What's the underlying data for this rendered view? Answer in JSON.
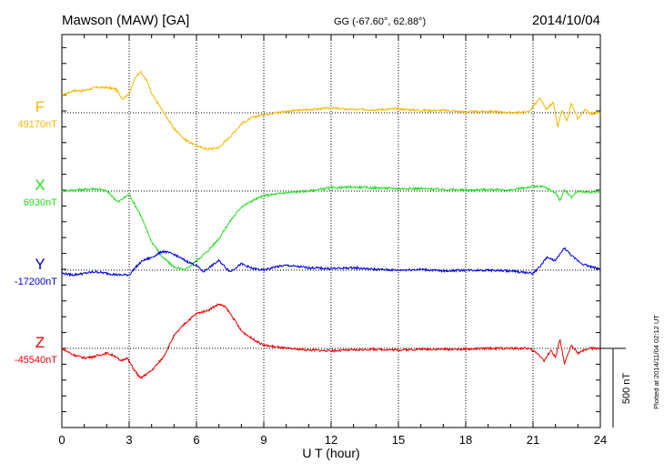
{
  "header": {
    "station": "Mawson (MAW)  [GA]",
    "coords": "GG (-67.60°,  62.88°)",
    "date": "2014/10/04"
  },
  "side_note": "Plotted at 2014/11/04 02:12 UT",
  "scale_bar_label": "500 nT",
  "colors": {
    "F": "#f5b800",
    "X": "#22dd22",
    "Y": "#0000e0",
    "Z": "#ee0000"
  },
  "chart_data": {
    "type": "line",
    "xlabel": "U T (hour)",
    "xlim": [
      0,
      24
    ],
    "x_ticks": [
      0,
      3,
      6,
      9,
      12,
      15,
      18,
      21,
      24
    ],
    "x_tick_labels": [
      "0",
      "3",
      "6",
      "9",
      "12",
      "15",
      "18",
      "21",
      "24"
    ],
    "x_grid": [
      3,
      6,
      9,
      12,
      15,
      18,
      21
    ],
    "scale_bar_nT": 500,
    "series": [
      {
        "name": "F",
        "baseline_label": "49170nT",
        "baseline_nT": 49170,
        "x": [
          0,
          0.5,
          1,
          1.5,
          2,
          2.4,
          2.7,
          3,
          3.3,
          3.5,
          3.8,
          4,
          4.5,
          5,
          5.5,
          6,
          6.5,
          7,
          7.5,
          8,
          8.5,
          9,
          10,
          11,
          12,
          13,
          14,
          15,
          16,
          17,
          18,
          19,
          20,
          20.8,
          21,
          21.3,
          21.6,
          21.9,
          22.1,
          22.3,
          22.5,
          22.7,
          23,
          23.3,
          23.6,
          24
        ],
        "y": [
          110,
          140,
          140,
          160,
          160,
          150,
          90,
          120,
          230,
          260,
          200,
          120,
          10,
          -100,
          -170,
          -210,
          -230,
          -220,
          -150,
          -70,
          -30,
          -10,
          10,
          20,
          30,
          20,
          20,
          25,
          15,
          15,
          5,
          10,
          0,
          5,
          40,
          90,
          20,
          70,
          -90,
          20,
          -60,
          60,
          -40,
          20,
          -5,
          0
        ]
      },
      {
        "name": "X",
        "baseline_label": "6930nT",
        "baseline_nT": 6930,
        "x": [
          0,
          0.5,
          1,
          1.5,
          2,
          2.3,
          2.5,
          2.8,
          3,
          3.5,
          4,
          4.5,
          5,
          5.5,
          6,
          6.5,
          7,
          7.5,
          8,
          8.5,
          9,
          10,
          11,
          12,
          13,
          14,
          15,
          16,
          17,
          18,
          19,
          20,
          21,
          21.5,
          22,
          22.2,
          22.4,
          22.7,
          23,
          23.5,
          24
        ],
        "y": [
          0,
          5,
          10,
          15,
          0,
          -40,
          -70,
          -40,
          -20,
          -150,
          -320,
          -420,
          -480,
          -500,
          -440,
          -380,
          -300,
          -190,
          -100,
          -60,
          -30,
          -10,
          0,
          20,
          25,
          20,
          15,
          15,
          10,
          5,
          10,
          5,
          30,
          25,
          -10,
          -60,
          10,
          -40,
          0,
          -10,
          0
        ]
      },
      {
        "name": "Y",
        "baseline_label": "-17200nT",
        "baseline_nT": -17200,
        "x": [
          0,
          0.5,
          1,
          1.5,
          2,
          2.5,
          3,
          3.3,
          3.6,
          4,
          4.5,
          5,
          5.5,
          6,
          6.3,
          6.6,
          7,
          7.5,
          8,
          8.5,
          9,
          9.5,
          10,
          11,
          12,
          13,
          14,
          15,
          16,
          17,
          18,
          19,
          20,
          21,
          21.3,
          21.6,
          22,
          22.4,
          22.8,
          23.2,
          23.6,
          24
        ],
        "y": [
          -20,
          -30,
          -20,
          -10,
          -20,
          -30,
          -30,
          20,
          60,
          80,
          120,
          100,
          60,
          30,
          -10,
          20,
          60,
          -10,
          40,
          10,
          0,
          20,
          30,
          15,
          10,
          15,
          5,
          0,
          5,
          -5,
          0,
          0,
          -5,
          -20,
          20,
          80,
          60,
          140,
          80,
          40,
          20,
          10
        ]
      },
      {
        "name": "Z",
        "baseline_label": "-45540nT",
        "baseline_nT": -45540,
        "x": [
          0,
          0.5,
          1,
          1.5,
          2,
          2.4,
          2.6,
          2.9,
          3.2,
          3.5,
          4,
          4.5,
          5,
          5.5,
          6,
          6.5,
          7,
          7.3,
          7.6,
          8,
          8.5,
          9,
          10,
          11,
          12,
          13,
          14,
          15,
          16,
          17,
          18,
          19,
          20,
          20.8,
          21.2,
          21.5,
          21.8,
          22,
          22.2,
          22.4,
          22.7,
          23,
          23.5,
          24
        ],
        "y": [
          0,
          -40,
          -60,
          -50,
          -30,
          -50,
          -80,
          -60,
          -130,
          -190,
          -140,
          -60,
          80,
          160,
          220,
          240,
          280,
          260,
          200,
          110,
          60,
          20,
          0,
          -10,
          -15,
          -10,
          -5,
          -10,
          -5,
          -5,
          -5,
          0,
          0,
          0,
          -30,
          -80,
          -10,
          -60,
          60,
          -100,
          20,
          -30,
          0,
          0
        ]
      }
    ]
  }
}
